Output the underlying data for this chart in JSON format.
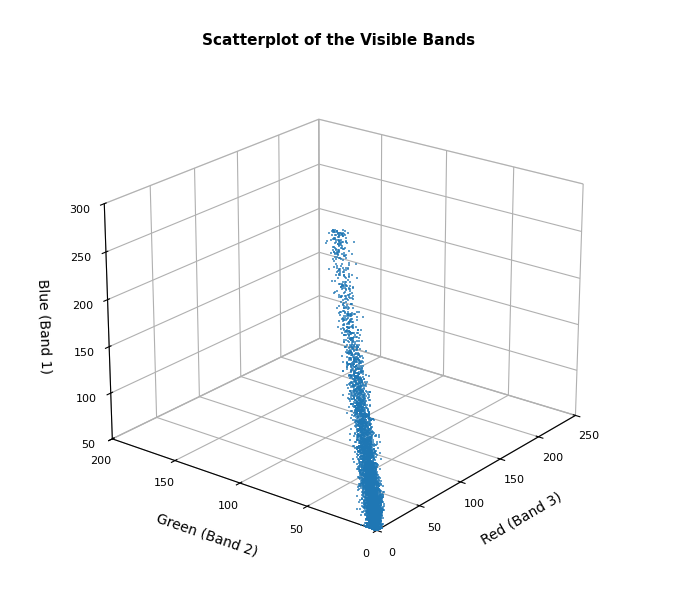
{
  "title": "Scatterplot of the Visible Bands",
  "xlabel": "Red (Band 3)",
  "ylabel": "Green (Band 2)",
  "zlabel": "Blue (Band 1)",
  "xlim": [
    0,
    250
  ],
  "ylim": [
    0,
    200
  ],
  "zlim": [
    50,
    300
  ],
  "xticks": [
    0,
    50,
    100,
    150,
    200,
    250
  ],
  "yticks": [
    0,
    50,
    100,
    150,
    200
  ],
  "zticks": [
    50,
    100,
    150,
    200,
    250,
    300
  ],
  "marker_color": "#1f77b4",
  "marker": "s",
  "marker_size": 2.5,
  "n_points": 5000,
  "seed": 42,
  "elev": 22,
  "azim": -142,
  "background_color": "#ffffff",
  "title_fontsize": 11,
  "label_fontsize": 10
}
